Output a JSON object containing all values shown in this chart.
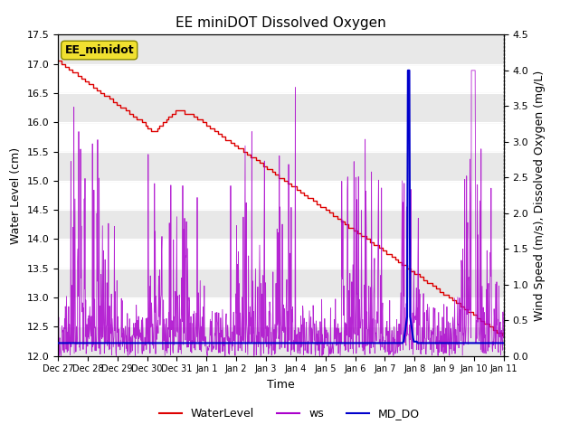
{
  "title": "EE miniDOT Dissolved Oxygen",
  "xlabel": "Time",
  "ylabel_left": "Water Level (cm)",
  "ylabel_right": "Wind Speed (m/s), Dissolved Oxygen (mg/L)",
  "ylim_left": [
    12.0,
    17.5
  ],
  "ylim_right": [
    0.0,
    4.5
  ],
  "legend_label": "EE_minidot",
  "series_labels": [
    "WaterLevel",
    "ws",
    "MD_DO"
  ],
  "series_colors": [
    "#dd0000",
    "#aa00cc",
    "#0000cc"
  ],
  "xtick_labels": [
    "Dec 27",
    "Dec 28",
    "Dec 29",
    "Dec 30",
    "Dec 31",
    "Jan 1",
    "Jan 2",
    "Jan 3",
    "Jan 4",
    "Jan 5",
    "Jan 6",
    "Jan 7",
    "Jan 8",
    "Jan 9",
    "Jan 10",
    "Jan 11"
  ],
  "background_color": "#ffffff",
  "band_color": "#e8e8e8",
  "title_fontsize": 11,
  "axis_fontsize": 9,
  "tick_fontsize": 8,
  "legend_fontsize": 9
}
